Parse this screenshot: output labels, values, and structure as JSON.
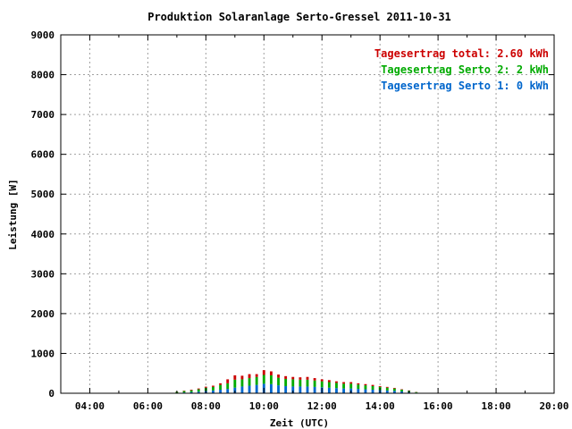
{
  "chart_data": {
    "type": "bar",
    "title": "Produktion Solaranlage Serto-Gressel 2011-10-31",
    "xlabel": "Zeit (UTC)",
    "ylabel": "Leistung [W]",
    "xlim": [
      3.0,
      20.0
    ],
    "ylim": [
      0,
      9000
    ],
    "x_ticks": [
      {
        "value": 4,
        "label": "04:00"
      },
      {
        "value": 6,
        "label": "06:00"
      },
      {
        "value": 8,
        "label": "08:00"
      },
      {
        "value": 10,
        "label": "10:00"
      },
      {
        "value": 12,
        "label": "12:00"
      },
      {
        "value": 14,
        "label": "14:00"
      },
      {
        "value": 16,
        "label": "16:00"
      },
      {
        "value": 18,
        "label": "18:00"
      },
      {
        "value": 20,
        "label": "20:00"
      }
    ],
    "y_ticks": [
      {
        "value": 0,
        "label": "0"
      },
      {
        "value": 1000,
        "label": "1000"
      },
      {
        "value": 2000,
        "label": "2000"
      },
      {
        "value": 3000,
        "label": "3000"
      },
      {
        "value": 4000,
        "label": "4000"
      },
      {
        "value": 5000,
        "label": "5000"
      },
      {
        "value": 6000,
        "label": "6000"
      },
      {
        "value": 7000,
        "label": "7000"
      },
      {
        "value": 8000,
        "label": "8000"
      },
      {
        "value": 9000,
        "label": "9000"
      }
    ],
    "grid": true,
    "legend_position": "top-right",
    "legend": [
      {
        "text": "Tagesertrag total: 2.60 kWh",
        "color": "#cc0000"
      },
      {
        "text": "Tagesertrag Serto 2: 2 kWh",
        "color": "#00aa00"
      },
      {
        "text": "Tagesertrag Serto 1: 0 kWh",
        "color": "#0066cc"
      }
    ],
    "stack_colors": [
      "#0066cc",
      "#00aa00",
      "#cc0000"
    ],
    "x": [
      7.0,
      7.25,
      7.5,
      7.75,
      8.0,
      8.25,
      8.5,
      8.75,
      9.0,
      9.25,
      9.5,
      9.75,
      10.0,
      10.25,
      10.5,
      10.75,
      11.0,
      11.25,
      11.5,
      11.75,
      12.0,
      12.25,
      12.5,
      12.75,
      13.0,
      13.25,
      13.5,
      13.75,
      14.0,
      14.25,
      14.5,
      14.75,
      15.0,
      15.25
    ],
    "series": [
      {
        "name": "Serto 1",
        "values": [
          10,
          20,
          30,
          40,
          60,
          70,
          90,
          110,
          140,
          170,
          190,
          210,
          240,
          230,
          200,
          180,
          170,
          170,
          170,
          160,
          150,
          140,
          130,
          120,
          120,
          110,
          100,
          90,
          80,
          70,
          60,
          45,
          30,
          15
        ]
      },
      {
        "name": "Serto 2",
        "values": [
          25,
          35,
          45,
          60,
          80,
          90,
          120,
          140,
          200,
          180,
          190,
          200,
          220,
          220,
          190,
          180,
          180,
          170,
          170,
          160,
          150,
          140,
          130,
          120,
          120,
          110,
          100,
          90,
          80,
          70,
          60,
          45,
          30,
          15
        ]
      },
      {
        "name": "total",
        "values": [
          5,
          10,
          15,
          20,
          25,
          30,
          40,
          100,
          110,
          90,
          100,
          70,
          120,
          100,
          80,
          70,
          60,
          60,
          70,
          60,
          50,
          50,
          40,
          40,
          40,
          30,
          30,
          30,
          20,
          20,
          15,
          10,
          10,
          5
        ]
      }
    ]
  }
}
